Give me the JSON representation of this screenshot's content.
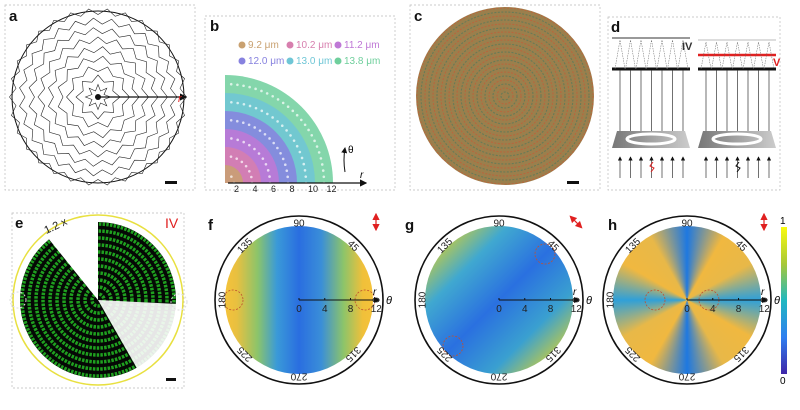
{
  "panels": {
    "a": {
      "label": "a",
      "axis": "r"
    },
    "b": {
      "label": "b",
      "legend": [
        {
          "text": "9.2 μm",
          "color": "#c9a170"
        },
        {
          "text": "10.2 μm",
          "color": "#d77fae"
        },
        {
          "text": "11.2 μm",
          "color": "#bf78d6"
        },
        {
          "text": "12.0 μm",
          "color": "#8782df"
        },
        {
          "text": "13.0 μm",
          "color": "#6fc6d6"
        },
        {
          "text": "13.8 μm",
          "color": "#6fcf9c"
        }
      ],
      "r_ticks": [
        "2",
        "4",
        "6",
        "8",
        "10",
        "12"
      ],
      "r_label": "r",
      "theta_label": "θ"
    },
    "c": {
      "label": "c"
    },
    "d": {
      "label": "d",
      "left_plane": "IV",
      "right_plane": "V",
      "accent": "#e02020"
    },
    "e": {
      "label": "e",
      "scale_text": "1.2 x",
      "plane": "IV"
    },
    "f": {
      "label": "f",
      "polarization": "vertical"
    },
    "g": {
      "label": "g",
      "polarization": "diagonal"
    },
    "h": {
      "label": "h",
      "polarization": "vertical"
    },
    "polar": {
      "angles": [
        "90",
        "45",
        "0",
        "315",
        "270",
        "225",
        "180",
        "135"
      ],
      "r_ticks": [
        "0",
        "4",
        "8",
        "12"
      ],
      "r_label": "r",
      "theta_label": "θ"
    },
    "colorbar": {
      "max": "1",
      "min": "0",
      "colormap": "parula"
    }
  }
}
